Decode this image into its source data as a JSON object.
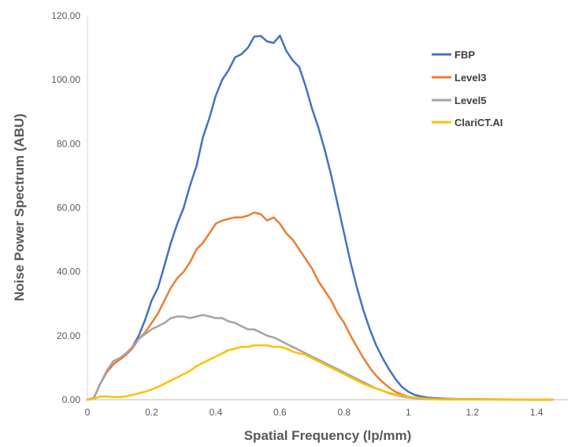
{
  "chart_data": {
    "type": "line",
    "title": "",
    "xlabel": "Spatial Frequency (lp/mm)",
    "ylabel": "Noise Power Spectrum (ABU)",
    "xlim": [
      0,
      1.5
    ],
    "ylim": [
      0,
      120
    ],
    "x_ticks": [
      "0",
      "0.2",
      "0.4",
      "0.6",
      "0.8",
      "1",
      "1.2",
      "1.4"
    ],
    "x_tick_values": [
      0,
      0.2,
      0.4,
      0.6,
      0.8,
      1.0,
      1.2,
      1.4
    ],
    "y_ticks": [
      "0.00",
      "20.00",
      "40.00",
      "60.00",
      "80.00",
      "100.00",
      "120.00"
    ],
    "y_tick_values": [
      0,
      20,
      40,
      60,
      80,
      100,
      120
    ],
    "grid": false,
    "legend_position": "top-right",
    "series": [
      {
        "name": "FBP",
        "color": "#4472C4",
        "x": [
          0.0,
          0.02,
          0.04,
          0.06,
          0.08,
          0.1,
          0.12,
          0.14,
          0.16,
          0.18,
          0.2,
          0.22,
          0.24,
          0.26,
          0.28,
          0.3,
          0.32,
          0.34,
          0.36,
          0.38,
          0.4,
          0.42,
          0.44,
          0.46,
          0.48,
          0.5,
          0.52,
          0.54,
          0.56,
          0.58,
          0.6,
          0.62,
          0.64,
          0.66,
          0.68,
          0.7,
          0.72,
          0.74,
          0.76,
          0.78,
          0.8,
          0.82,
          0.84,
          0.86,
          0.88,
          0.9,
          0.92,
          0.94,
          0.96,
          0.98,
          1.0,
          1.02,
          1.04,
          1.06,
          1.08,
          1.1,
          1.12,
          1.14,
          1.16,
          1.2,
          1.3,
          1.4,
          1.45
        ],
        "y": [
          0.0,
          0.5,
          5.0,
          8.5,
          11.0,
          12.5,
          14.0,
          16.5,
          20.0,
          25.0,
          31.0,
          35.0,
          42.0,
          49.0,
          55.0,
          60.0,
          67.0,
          73.0,
          82.0,
          88.0,
          95.0,
          100.0,
          103.0,
          107.0,
          108.0,
          110.0,
          113.5,
          113.7,
          112.0,
          111.5,
          113.8,
          109.0,
          106.0,
          104.0,
          98.0,
          91.0,
          85.0,
          78.0,
          70.0,
          61.0,
          52.0,
          43.0,
          35.0,
          28.0,
          22.0,
          17.0,
          13.0,
          9.5,
          6.5,
          4.0,
          2.5,
          1.5,
          1.0,
          0.7,
          0.5,
          0.4,
          0.3,
          0.25,
          0.2,
          0.15,
          0.1,
          0.0,
          0.0
        ]
      },
      {
        "name": "Level3",
        "color": "#ED7D31",
        "x": [
          0.0,
          0.02,
          0.04,
          0.06,
          0.08,
          0.1,
          0.12,
          0.14,
          0.16,
          0.18,
          0.2,
          0.22,
          0.24,
          0.26,
          0.28,
          0.3,
          0.32,
          0.34,
          0.36,
          0.38,
          0.4,
          0.42,
          0.44,
          0.46,
          0.48,
          0.5,
          0.52,
          0.54,
          0.56,
          0.58,
          0.6,
          0.62,
          0.64,
          0.66,
          0.68,
          0.7,
          0.72,
          0.74,
          0.76,
          0.78,
          0.8,
          0.82,
          0.84,
          0.86,
          0.88,
          0.9,
          0.92,
          0.94,
          0.96,
          0.98,
          1.0,
          1.02,
          1.04,
          1.06,
          1.08,
          1.1,
          1.2,
          1.3,
          1.4,
          1.45
        ],
        "y": [
          0.0,
          0.5,
          5.0,
          8.5,
          11.0,
          12.5,
          14.0,
          16.0,
          19.0,
          21.0,
          24.0,
          27.0,
          31.0,
          35.0,
          38.0,
          40.0,
          43.0,
          47.0,
          49.0,
          52.0,
          55.0,
          56.0,
          56.5,
          57.0,
          57.0,
          57.5,
          58.5,
          58.0,
          56.0,
          57.0,
          55.0,
          52.0,
          50.0,
          47.0,
          44.0,
          41.0,
          37.0,
          34.0,
          31.0,
          27.0,
          24.0,
          20.0,
          16.5,
          13.0,
          10.0,
          7.5,
          5.5,
          3.8,
          2.5,
          1.6,
          1.0,
          0.6,
          0.4,
          0.3,
          0.2,
          0.15,
          0.1,
          0.05,
          0.0,
          0.0
        ]
      },
      {
        "name": "Level5",
        "color": "#A5A5A5",
        "x": [
          0.0,
          0.02,
          0.04,
          0.06,
          0.08,
          0.1,
          0.12,
          0.14,
          0.16,
          0.18,
          0.2,
          0.22,
          0.24,
          0.26,
          0.28,
          0.3,
          0.32,
          0.34,
          0.36,
          0.38,
          0.4,
          0.42,
          0.44,
          0.46,
          0.48,
          0.5,
          0.52,
          0.54,
          0.56,
          0.58,
          0.6,
          0.62,
          0.64,
          0.66,
          0.68,
          0.7,
          0.72,
          0.74,
          0.76,
          0.78,
          0.8,
          0.82,
          0.84,
          0.86,
          0.88,
          0.9,
          0.92,
          0.94,
          0.96,
          0.98,
          1.0,
          1.02,
          1.04,
          1.06,
          1.08,
          1.1,
          1.2,
          1.3,
          1.4,
          1.45
        ],
        "y": [
          0.0,
          0.5,
          5.0,
          9.0,
          12.0,
          13.0,
          14.5,
          16.5,
          19.0,
          20.5,
          22.0,
          23.0,
          24.0,
          25.5,
          26.0,
          26.0,
          25.5,
          26.0,
          26.5,
          26.0,
          25.5,
          25.5,
          24.5,
          24.0,
          23.0,
          22.0,
          22.0,
          21.0,
          20.0,
          19.5,
          18.5,
          17.5,
          16.5,
          15.5,
          14.5,
          13.5,
          12.5,
          11.5,
          10.5,
          9.5,
          8.5,
          7.5,
          6.5,
          5.5,
          4.5,
          3.5,
          2.8,
          2.0,
          1.5,
          1.0,
          0.7,
          0.5,
          0.3,
          0.2,
          0.15,
          0.1,
          0.05,
          0.0,
          0.0,
          0.0
        ]
      },
      {
        "name": "ClariCT.AI",
        "color": "#FFC000",
        "x": [
          0.0,
          0.02,
          0.04,
          0.06,
          0.08,
          0.1,
          0.12,
          0.14,
          0.16,
          0.18,
          0.2,
          0.22,
          0.24,
          0.26,
          0.28,
          0.3,
          0.32,
          0.34,
          0.36,
          0.38,
          0.4,
          0.42,
          0.44,
          0.46,
          0.48,
          0.5,
          0.52,
          0.54,
          0.56,
          0.58,
          0.6,
          0.62,
          0.64,
          0.66,
          0.68,
          0.7,
          0.72,
          0.74,
          0.76,
          0.78,
          0.8,
          0.82,
          0.84,
          0.86,
          0.88,
          0.9,
          0.92,
          0.94,
          0.96,
          0.98,
          1.0,
          1.02,
          1.04,
          1.06,
          1.08,
          1.1,
          1.2,
          1.3,
          1.4,
          1.45
        ],
        "y": [
          0.0,
          0.3,
          1.0,
          1.0,
          0.8,
          0.8,
          1.0,
          1.5,
          2.0,
          2.5,
          3.2,
          4.0,
          5.0,
          6.0,
          7.0,
          8.0,
          9.0,
          10.5,
          11.5,
          12.5,
          13.5,
          14.5,
          15.5,
          16.0,
          16.5,
          16.5,
          17.0,
          17.0,
          17.0,
          16.5,
          16.5,
          16.0,
          15.0,
          14.5,
          14.0,
          13.0,
          12.0,
          11.0,
          10.0,
          9.0,
          8.0,
          7.0,
          6.0,
          5.0,
          4.2,
          3.5,
          2.8,
          2.2,
          1.7,
          1.3,
          1.0,
          0.7,
          0.5,
          0.3,
          0.2,
          0.15,
          0.1,
          0.05,
          0.0,
          0.0
        ]
      }
    ]
  },
  "legend": {
    "fbp": "FBP",
    "level3": "Level3",
    "level5": "Level5",
    "clarict": "ClariCT.AI"
  },
  "axes": {
    "x_title": "Spatial Frequency (lp/mm)",
    "y_title": "Noise Power Spectrum (ABU)"
  }
}
